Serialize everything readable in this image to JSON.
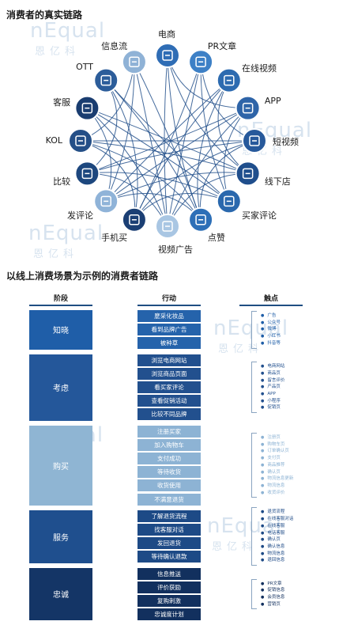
{
  "titles": {
    "chain": "消费者的真实链路",
    "scenario": "以线上消费场景为示例的消费者链路"
  },
  "watermark": {
    "brand": "nEqual",
    "cn": "恩亿科"
  },
  "network": {
    "nodes": [
      {
        "label": "电商",
        "icon": "cart-icon",
        "color": "#2f6db5"
      },
      {
        "label": "PR文章",
        "icon": "document-icon",
        "color": "#3d80c6"
      },
      {
        "label": "在线视频",
        "icon": "video-play-icon",
        "color": "#2d6bb0"
      },
      {
        "label": "APP",
        "icon": "phone-app-icon",
        "color": "#2e64a8"
      },
      {
        "label": "短视频",
        "icon": "short-video-icon",
        "color": "#27599b"
      },
      {
        "label": "线下店",
        "icon": "store-icon",
        "color": "#1f4e8c"
      },
      {
        "label": "买家评论",
        "icon": "comment-icon",
        "color": "#2a68ad"
      },
      {
        "label": "点赞",
        "icon": "thumbs-up-icon",
        "color": "#2d6fb7"
      },
      {
        "label": "视频广告",
        "icon": "ad-screen-icon",
        "color": "#a9c6e3"
      },
      {
        "label": "手机买",
        "icon": "mobile-icon",
        "color": "#1b3f74"
      },
      {
        "label": "发评论",
        "icon": "edit-icon",
        "color": "#8fb3d8"
      },
      {
        "label": "比较",
        "icon": "scale-icon",
        "color": "#1d477e"
      },
      {
        "label": "KOL",
        "icon": "kol-icon",
        "color": "#244f87"
      },
      {
        "label": "客服",
        "icon": "headset-icon",
        "color": "#1a3d70"
      },
      {
        "label": "OTT",
        "icon": "tv-icon",
        "color": "#2c5d9a"
      },
      {
        "label": "信息流",
        "icon": "feed-icon",
        "color": "#8fb2d6"
      }
    ]
  },
  "headers": {
    "stage": "阶段",
    "action": "行动",
    "touchpoint": "触点"
  },
  "stages": [
    {
      "label": "知晓",
      "color": "#1f5ea8"
    },
    {
      "label": "考虑",
      "color": "#24579a"
    },
    {
      "label": "购买",
      "color": "#8fb5d3"
    },
    {
      "label": "服务",
      "color": "#1f4f8e"
    },
    {
      "label": "忠诚",
      "color": "#143566"
    }
  ],
  "actions": [
    {
      "label": "麼采化妆品",
      "color": "#2563ab"
    },
    {
      "label": "看到品牌广告",
      "color": "#2563ab"
    },
    {
      "label": "被种草",
      "color": "#2563ab"
    },
    {
      "label": "浏览电商网站",
      "color": "#22508e"
    },
    {
      "label": "浏览商品页面",
      "color": "#22508e"
    },
    {
      "label": "看买家评论",
      "color": "#22508e"
    },
    {
      "label": "查看促销活动",
      "color": "#22508e"
    },
    {
      "label": "比较不同品牌",
      "color": "#22508e"
    },
    {
      "label": "注册买家",
      "color": "#8db3d4"
    },
    {
      "label": "加入购物车",
      "color": "#8db3d4"
    },
    {
      "label": "支付成功",
      "color": "#8db3d4"
    },
    {
      "label": "等待收货",
      "color": "#8db3d4"
    },
    {
      "label": "收货使用",
      "color": "#8db3d4"
    },
    {
      "label": "不满意退货",
      "color": "#8db3d4"
    },
    {
      "label": "了解退货流程",
      "color": "#1d4a86"
    },
    {
      "label": "找客服对话",
      "color": "#1d4a86"
    },
    {
      "label": "发回退货",
      "color": "#1d4a86"
    },
    {
      "label": "等待确认退款",
      "color": "#1d4a86"
    },
    {
      "label": "信息推送",
      "color": "#12305e"
    },
    {
      "label": "评价获励",
      "color": "#12305e"
    },
    {
      "label": "复购刺激",
      "color": "#12305e"
    },
    {
      "label": "忠诚度计划",
      "color": "#12305e"
    }
  ],
  "touchpoints": [
    {
      "items": [
        "广告",
        "公众号",
        "微博",
        "小红书",
        "抖音等"
      ],
      "color": "#1f5ea8"
    },
    {
      "items": [
        "电商网站",
        "商品页",
        "留言评价",
        "产品页",
        "APP",
        "小程序",
        "促销页"
      ],
      "color": "#22508e"
    },
    {
      "items": [
        "注册页",
        "购物车页",
        "订单确认页",
        "支付页",
        "商品推荐",
        "确认页",
        "物流信息更新",
        "物流信息",
        "收货评价"
      ],
      "color": "#8db3d4"
    },
    {
      "items": [
        "退货流程",
        "在线客服对话",
        "在线客服",
        "电话客服",
        "确认页",
        "确认信息",
        "物流信息",
        "退回信息"
      ],
      "color": "#1d4a86"
    },
    {
      "items": [
        "PR文章",
        "促销信息",
        "会员信息",
        "营销页"
      ],
      "color": "#12305e"
    }
  ]
}
